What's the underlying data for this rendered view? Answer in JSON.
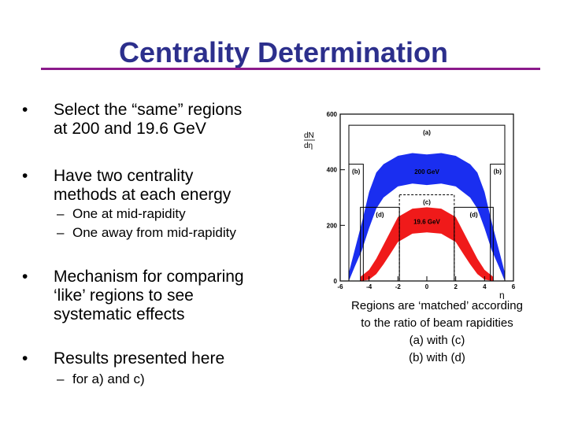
{
  "slide": {
    "title": "Centrality Determination",
    "bullets": [
      {
        "line1": "Select the “same” regions",
        "line2": "at 200 and 19.6 GeV"
      },
      {
        "line1": "Have two centrality",
        "line2": "methods at each energy"
      },
      {
        "line1": "Mechanism for comparing",
        "line2": "‘like’ regions to see",
        "line3": "systematic effects"
      },
      {
        "line1": "Results presented here"
      }
    ],
    "subbullets_method": [
      "One at mid-rapidity",
      "One away from mid-rapidity"
    ],
    "subbullets_results": [
      "for a) and c)"
    ],
    "bullet_symbol": "•",
    "sub_symbol": "–",
    "caption": {
      "line1": "Regions are ‘matched’ according",
      "line2": "to the ratio of beam rapidities",
      "line3": "(a) with (c)",
      "line4": "(b) with (d)"
    }
  },
  "chart_data": {
    "type": "area",
    "ylabel_top": "dN",
    "ylabel_bottom": "dη",
    "xlabel": "η",
    "xlim": [
      -6,
      6
    ],
    "ylim": [
      0,
      600
    ],
    "xticks": [
      "-6",
      "-4",
      "-2",
      "0",
      "2",
      "4",
      "6"
    ],
    "yticks": [
      "0",
      "200",
      "400",
      "600"
    ],
    "series": [
      {
        "name": "200 GeV",
        "color": "#1a2ef0",
        "x": [
          -5.4,
          -5,
          -4.5,
          -4,
          -3.5,
          -3,
          -2,
          -1,
          0,
          1,
          2,
          3,
          3.5,
          4,
          4.5,
          5,
          5.4
        ],
        "low": [
          0,
          50,
          110,
          190,
          260,
          300,
          340,
          350,
          345,
          350,
          340,
          300,
          260,
          190,
          110,
          50,
          0
        ],
        "high": [
          30,
          110,
          210,
          320,
          390,
          420,
          450,
          460,
          455,
          460,
          450,
          420,
          390,
          320,
          210,
          110,
          30
        ]
      },
      {
        "name": "19.6 GeV",
        "color": "#f01a1a",
        "x": [
          -4.6,
          -4,
          -3.5,
          -3,
          -2.5,
          -2,
          -1,
          0,
          1,
          2,
          2.5,
          3,
          3.5,
          4,
          4.6
        ],
        "low": [
          0,
          5,
          25,
          60,
          100,
          140,
          170,
          175,
          170,
          140,
          100,
          60,
          25,
          5,
          0
        ],
        "high": [
          15,
          40,
          80,
          130,
          180,
          230,
          260,
          265,
          260,
          230,
          180,
          130,
          80,
          40,
          15
        ]
      }
    ],
    "regions": [
      {
        "label": "(a)",
        "x": [
          -5.4,
          5.4
        ],
        "y": 560
      },
      {
        "label": "(b)",
        "x": [
          -5.4,
          -4.4
        ],
        "y": 420
      },
      {
        "label": "(b)",
        "x": [
          4.4,
          5.4
        ],
        "y": 420
      },
      {
        "label": "(c)",
        "x": [
          -1.9,
          1.9
        ],
        "y": 310
      },
      {
        "label": "(d)",
        "x": [
          -4.6,
          -1.9
        ],
        "y": 265
      },
      {
        "label": "(d)",
        "x": [
          1.9,
          4.6
        ],
        "y": 265
      }
    ],
    "annotations": [
      {
        "text": "200 GeV",
        "x": 0,
        "y": 385
      },
      {
        "text": "19.6 GeV",
        "x": 0,
        "y": 205
      }
    ]
  }
}
